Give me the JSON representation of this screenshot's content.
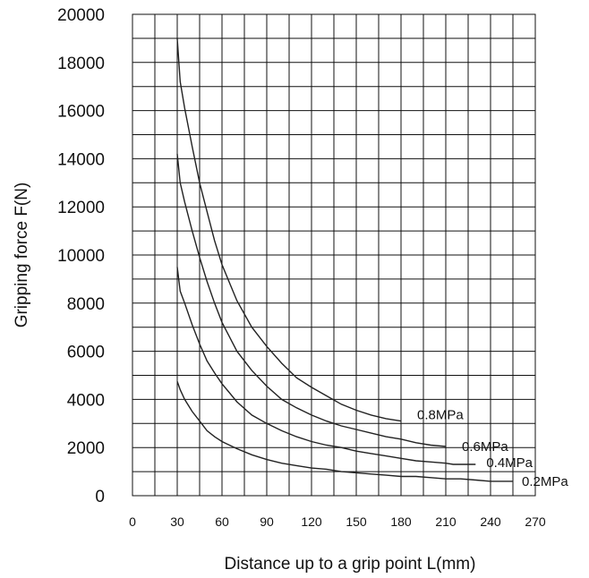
{
  "chart_data": {
    "type": "line",
    "title": "",
    "xlabel": "Distance up to a grip point L(mm)",
    "ylabel": "Gripping force F(N)",
    "xlim": [
      0,
      270
    ],
    "ylim": [
      0,
      20000
    ],
    "x_ticks": [
      "0",
      "30",
      "60",
      "90",
      "120",
      "150",
      "180",
      "210",
      "240",
      "270"
    ],
    "y_ticks": [
      "0",
      "2000",
      "4000",
      "6000",
      "8000",
      "10000",
      "12000",
      "14000",
      "16000",
      "18000",
      "20000"
    ],
    "grid": true,
    "series": [
      {
        "name": "0.8MPa",
        "points": [
          [
            30,
            19000
          ],
          [
            32,
            17200
          ],
          [
            35,
            16100
          ],
          [
            40,
            14500
          ],
          [
            45,
            13000
          ],
          [
            50,
            11800
          ],
          [
            55,
            10600
          ],
          [
            60,
            9600
          ],
          [
            70,
            8100
          ],
          [
            80,
            7000
          ],
          [
            90,
            6200
          ],
          [
            100,
            5500
          ],
          [
            110,
            4900
          ],
          [
            120,
            4500
          ],
          [
            130,
            4150
          ],
          [
            140,
            3800
          ],
          [
            150,
            3550
          ],
          [
            160,
            3350
          ],
          [
            170,
            3200
          ],
          [
            180,
            3100
          ]
        ]
      },
      {
        "name": "0.6MPa",
        "points": [
          [
            30,
            14200
          ],
          [
            32,
            13000
          ],
          [
            35,
            12200
          ],
          [
            40,
            11000
          ],
          [
            45,
            9900
          ],
          [
            50,
            8900
          ],
          [
            55,
            8000
          ],
          [
            60,
            7200
          ],
          [
            70,
            6000
          ],
          [
            80,
            5200
          ],
          [
            90,
            4550
          ],
          [
            100,
            4000
          ],
          [
            110,
            3650
          ],
          [
            120,
            3350
          ],
          [
            130,
            3100
          ],
          [
            140,
            2900
          ],
          [
            150,
            2750
          ],
          [
            160,
            2600
          ],
          [
            170,
            2450
          ],
          [
            180,
            2350
          ],
          [
            190,
            2200
          ],
          [
            200,
            2100
          ],
          [
            210,
            2050
          ]
        ]
      },
      {
        "name": "0.4MPa",
        "points": [
          [
            30,
            9500
          ],
          [
            32,
            8500
          ],
          [
            35,
            8000
          ],
          [
            40,
            7100
          ],
          [
            45,
            6300
          ],
          [
            50,
            5600
          ],
          [
            55,
            5100
          ],
          [
            60,
            4650
          ],
          [
            70,
            3900
          ],
          [
            80,
            3350
          ],
          [
            90,
            3000
          ],
          [
            100,
            2700
          ],
          [
            110,
            2450
          ],
          [
            120,
            2250
          ],
          [
            130,
            2100
          ],
          [
            140,
            2000
          ],
          [
            150,
            1850
          ],
          [
            160,
            1750
          ],
          [
            170,
            1650
          ],
          [
            180,
            1550
          ],
          [
            190,
            1450
          ],
          [
            200,
            1400
          ],
          [
            210,
            1350
          ],
          [
            215,
            1300
          ],
          [
            230,
            1300
          ]
        ]
      },
      {
        "name": "0.2MPa",
        "points": [
          [
            30,
            4750
          ],
          [
            32,
            4400
          ],
          [
            35,
            4000
          ],
          [
            40,
            3500
          ],
          [
            45,
            3100
          ],
          [
            50,
            2700
          ],
          [
            55,
            2450
          ],
          [
            60,
            2250
          ],
          [
            70,
            1950
          ],
          [
            80,
            1700
          ],
          [
            90,
            1500
          ],
          [
            100,
            1350
          ],
          [
            110,
            1250
          ],
          [
            120,
            1150
          ],
          [
            130,
            1100
          ],
          [
            140,
            1000
          ],
          [
            150,
            950
          ],
          [
            160,
            900
          ],
          [
            170,
            850
          ],
          [
            180,
            800
          ],
          [
            190,
            800
          ],
          [
            200,
            750
          ],
          [
            210,
            700
          ],
          [
            220,
            700
          ],
          [
            230,
            650
          ],
          [
            240,
            600
          ],
          [
            255,
            600
          ]
        ]
      }
    ]
  }
}
